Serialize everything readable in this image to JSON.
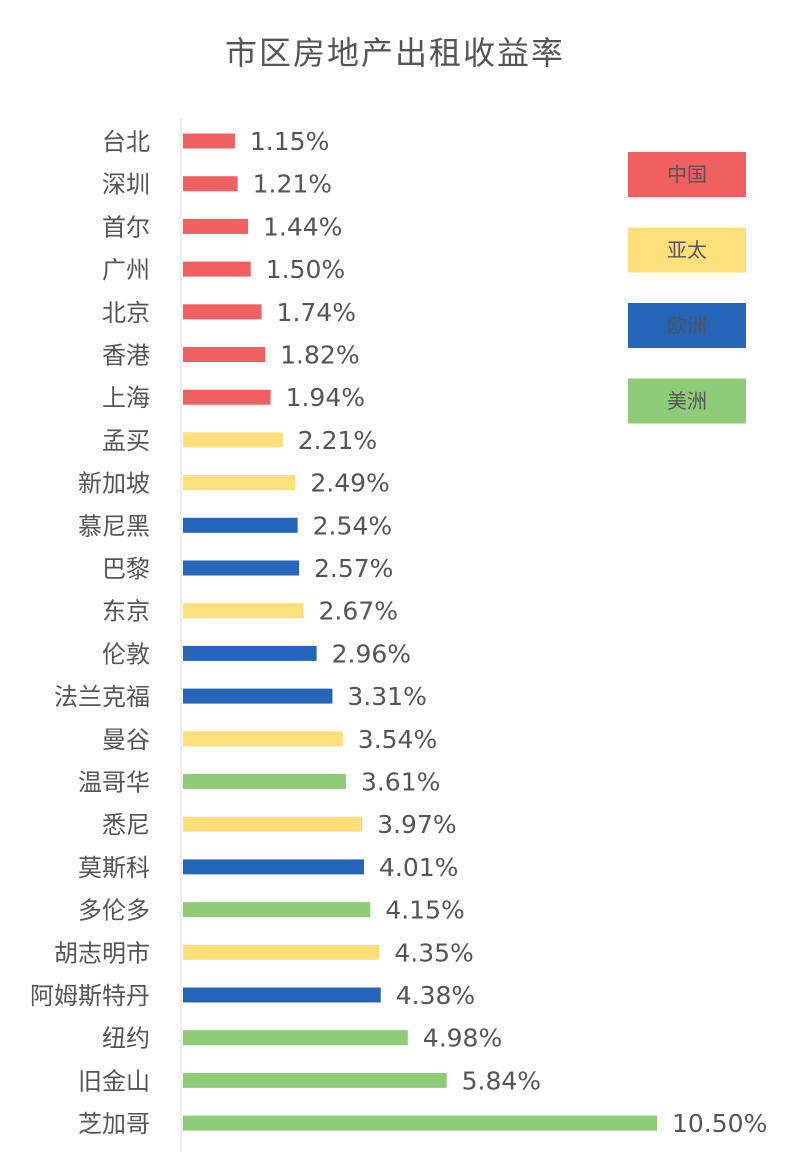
{
  "chart_data": {
    "type": "bar",
    "orientation": "horizontal",
    "title": "市区房地产出租收益率",
    "xlabel": "",
    "ylabel": "",
    "xlim": [
      0,
      10.5
    ],
    "value_format": "percent",
    "categories": [
      "台北",
      "深圳",
      "首尔",
      "广州",
      "北京",
      "香港",
      "上海",
      "孟买",
      "新加坡",
      "慕尼黑",
      "巴黎",
      "东京",
      "伦敦",
      "法兰克福",
      "曼谷",
      "温哥华",
      "悉尼",
      "莫斯科",
      "多伦多",
      "胡志明市",
      "阿姆斯特丹",
      "纽约",
      "旧金山",
      "芝加哥"
    ],
    "values": [
      1.15,
      1.21,
      1.44,
      1.5,
      1.74,
      1.82,
      1.94,
      2.21,
      2.49,
      2.54,
      2.57,
      2.67,
      2.96,
      3.31,
      3.54,
      3.61,
      3.97,
      4.01,
      4.15,
      4.35,
      4.38,
      4.98,
      5.84,
      10.5
    ],
    "value_labels": [
      "1.15%",
      "1.21%",
      "1.44%",
      "1.50%",
      "1.74%",
      "1.82%",
      "1.94%",
      "2.21%",
      "2.49%",
      "2.54%",
      "2.57%",
      "2.67%",
      "2.96%",
      "3.31%",
      "3.54%",
      "3.61%",
      "3.97%",
      "4.01%",
      "4.15%",
      "4.35%",
      "4.38%",
      "4.98%",
      "5.84%",
      "10.50%"
    ],
    "groups": [
      "中国",
      "中国",
      "中国",
      "中国",
      "中国",
      "中国",
      "中国",
      "亚太",
      "亚太",
      "欧洲",
      "欧洲",
      "亚太",
      "欧洲",
      "欧洲",
      "亚太",
      "美洲",
      "亚太",
      "欧洲",
      "美洲",
      "亚太",
      "欧洲",
      "美洲",
      "美洲",
      "美洲"
    ],
    "legend": {
      "position": "top-right",
      "entries": [
        {
          "name": "中国",
          "color": "#f06060"
        },
        {
          "name": "亚太",
          "color": "#fde07a"
        },
        {
          "name": "欧洲",
          "color": "#2566b8"
        },
        {
          "name": "美洲",
          "color": "#8fcc78"
        }
      ]
    },
    "grid": false
  }
}
